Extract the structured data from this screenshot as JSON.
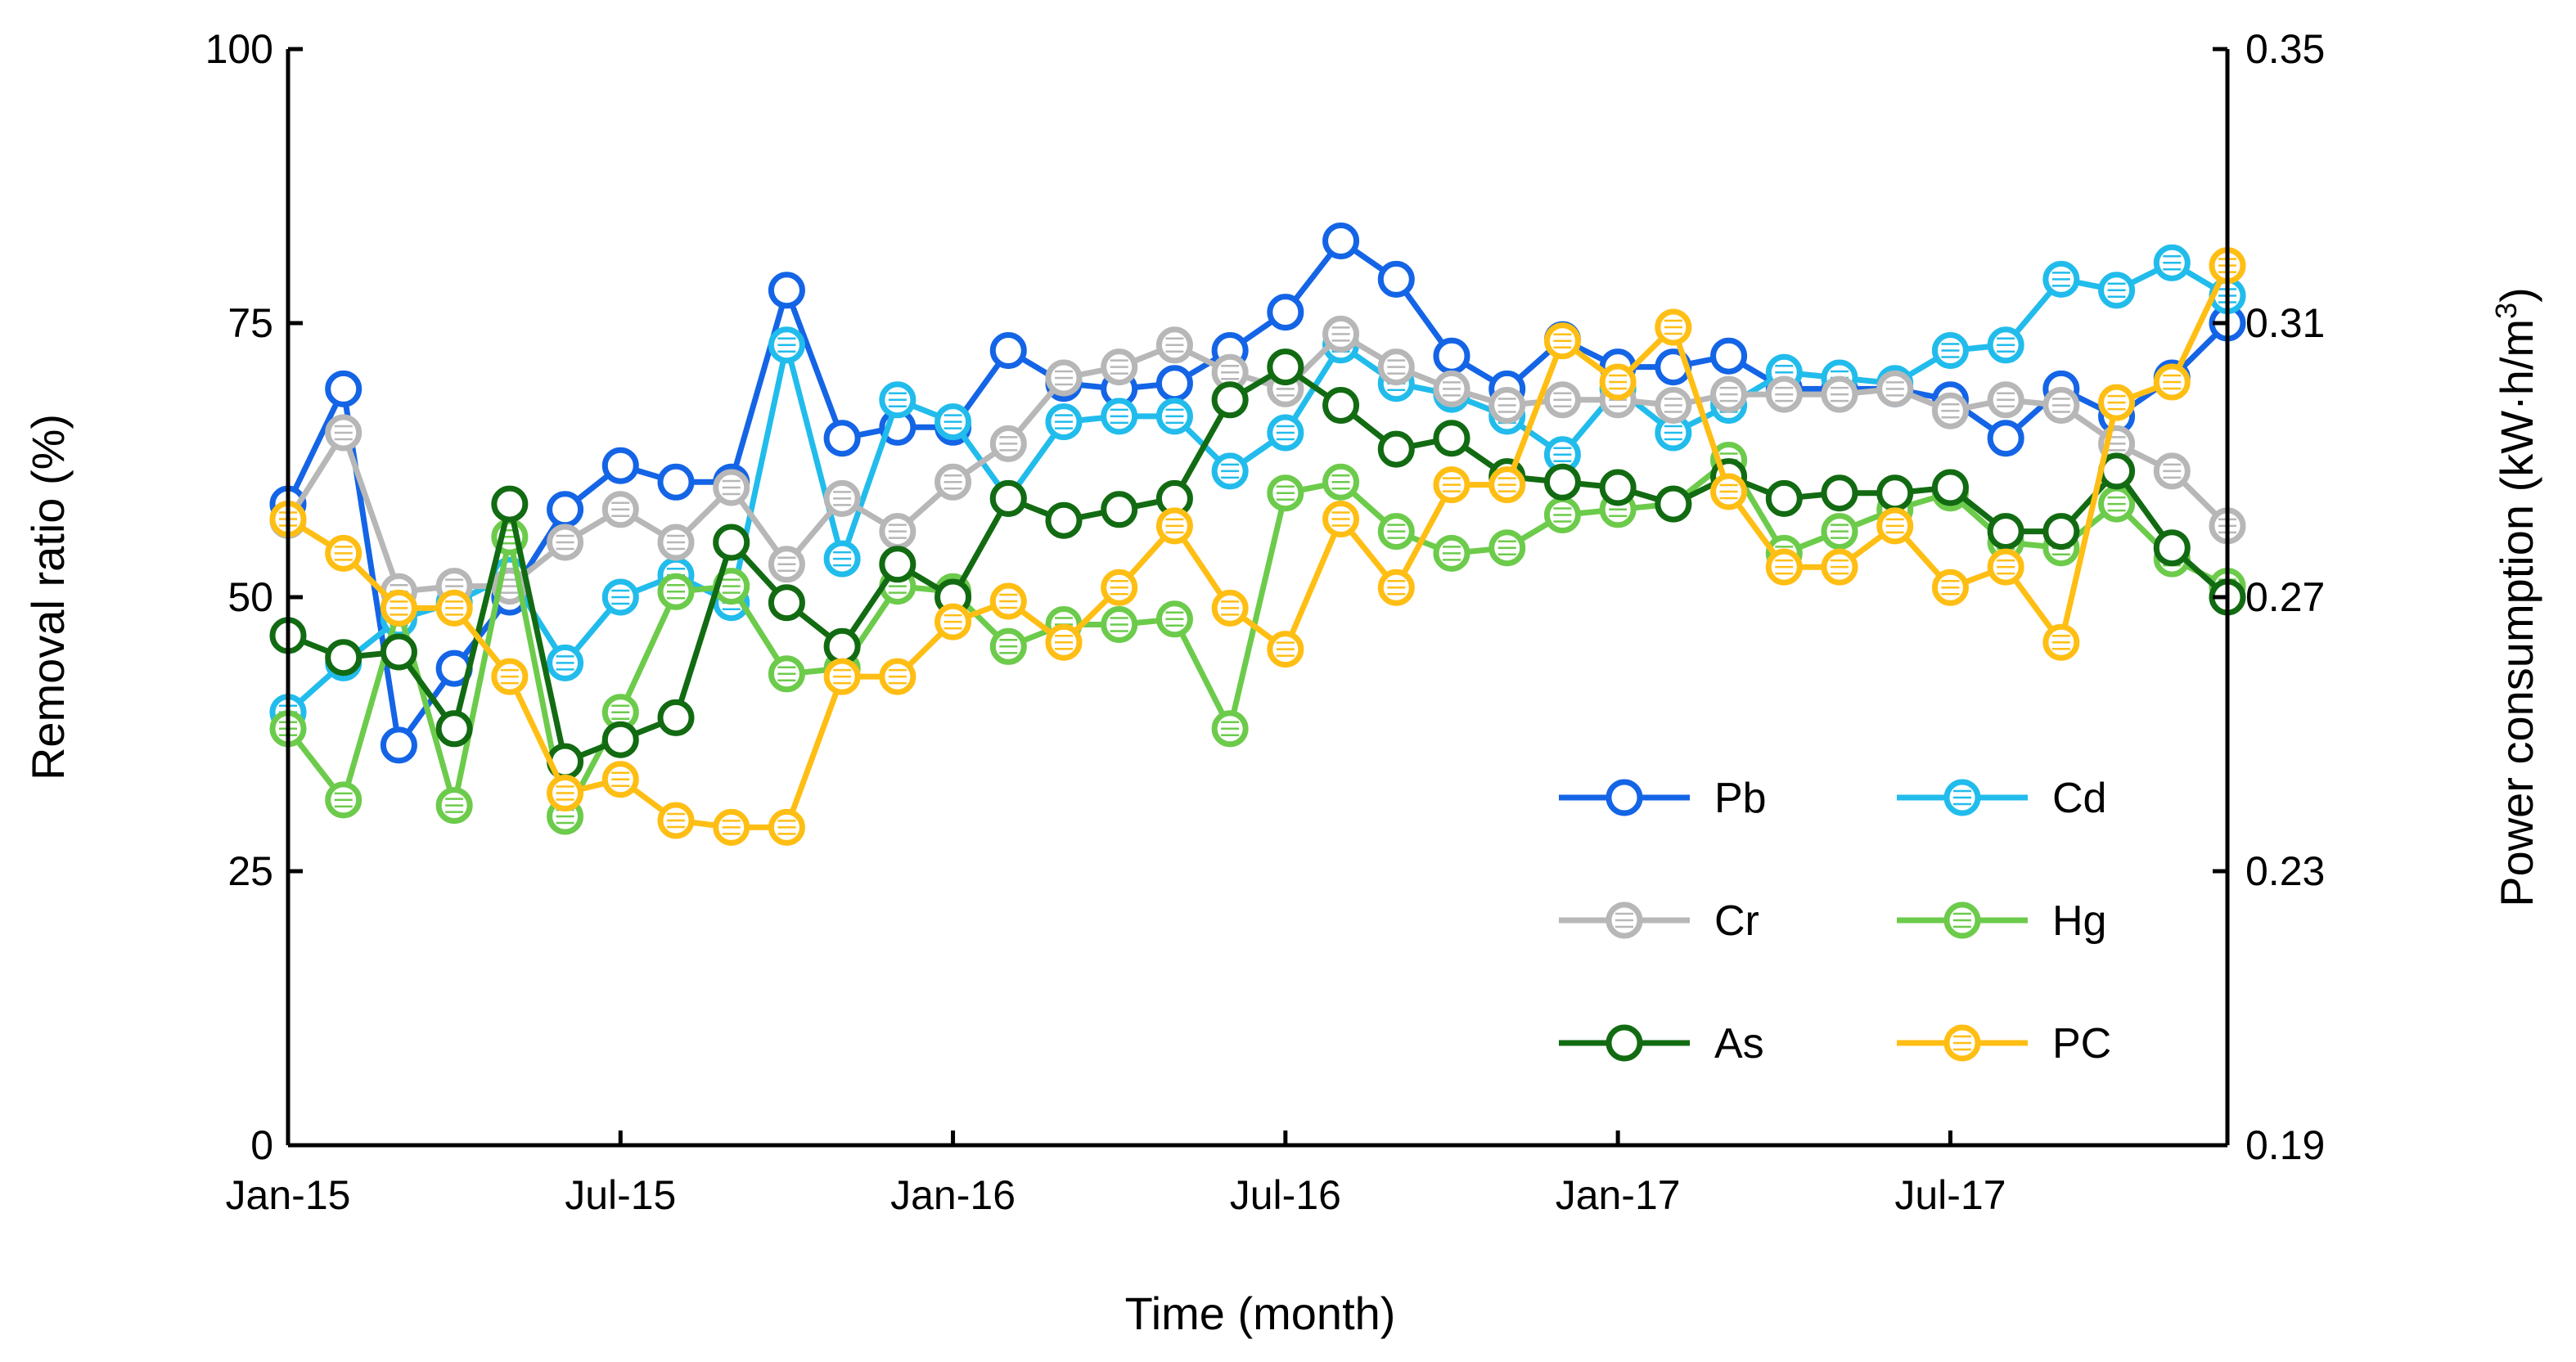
{
  "chart_data": {
    "type": "line",
    "xlabel": "Time (month)",
    "ylabel_left": "Removal ratio (%)",
    "ylabel_right_parts": [
      "Power consumption (kW·h/m",
      "3",
      ")"
    ],
    "xticks": [
      "Jan-15",
      "Jul-15",
      "Jan-16",
      "Jul-16",
      "Jan-17",
      "Jul-17"
    ],
    "xtick_index": [
      0,
      6,
      12,
      18,
      24,
      30
    ],
    "xlim": [
      0,
      35
    ],
    "ylim_left": [
      0,
      100
    ],
    "yticks_left": [
      "0",
      "25",
      "50",
      "75",
      "100"
    ],
    "ylim_right": [
      0.19,
      0.35
    ],
    "yticks_right": [
      "0.19",
      "0.23",
      "0.27",
      "0.31",
      "0.35"
    ],
    "series": [
      {
        "name": "Pb",
        "axis": "left",
        "color": "#1464E6",
        "style": "open",
        "values": [
          58.5,
          69,
          36.5,
          43.5,
          50,
          58,
          62,
          60.5,
          60.5,
          78,
          64.5,
          65.5,
          65.5,
          72.5,
          69.5,
          69,
          69.5,
          72.5,
          76,
          82.5,
          79,
          72,
          69,
          73.5,
          71,
          71,
          72,
          69,
          69,
          69,
          68,
          64.5,
          69,
          66.5,
          70,
          75
        ]
      },
      {
        "name": "Cd",
        "axis": "left",
        "color": "#21BCEC",
        "style": "lined",
        "values": [
          39.5,
          44,
          48,
          49.5,
          52,
          44,
          50,
          52,
          49.5,
          73,
          53.5,
          68,
          66,
          59,
          66,
          66.5,
          66.5,
          61.5,
          65,
          73,
          69.5,
          68.5,
          66.5,
          63,
          69,
          65,
          67.5,
          70.5,
          70,
          69.5,
          72.5,
          73,
          79,
          78,
          80.5,
          77.5
        ]
      },
      {
        "name": "Cr",
        "axis": "left",
        "color": "#B7B7B7",
        "style": "lined",
        "values": [
          57,
          65,
          50.5,
          51,
          51,
          55,
          58,
          55,
          60,
          53,
          59,
          56,
          60.5,
          64,
          70,
          71,
          73,
          70.5,
          69,
          74,
          71,
          69,
          67.5,
          68,
          68,
          67.5,
          68.5,
          68.5,
          68.5,
          69,
          67,
          68,
          67.5,
          64,
          61.5,
          56.5
        ]
      },
      {
        "name": "Hg",
        "axis": "left",
        "color": "#6CCB4B",
        "style": "lined",
        "values": [
          38,
          31.5,
          49,
          31,
          55.5,
          30,
          39.5,
          50.5,
          51,
          43,
          43.5,
          51,
          50.5,
          45.5,
          47.5,
          47.5,
          48,
          38,
          59.5,
          60.5,
          56,
          54,
          54.5,
          57.5,
          58,
          58.5,
          62.5,
          54,
          56,
          58,
          59.5,
          55,
          54.5,
          58.5,
          53.5,
          51
        ]
      },
      {
        "name": "As",
        "axis": "left",
        "color": "#126B12",
        "style": "open",
        "values": [
          46.5,
          44.5,
          45,
          38,
          58.5,
          35,
          37,
          39,
          55,
          49.5,
          45.5,
          53,
          50,
          59,
          57,
          58,
          59,
          68,
          71,
          67.5,
          63.5,
          64.5,
          61,
          60.5,
          60,
          58.5,
          61,
          59,
          59.5,
          59.5,
          60,
          56,
          56,
          61.5,
          54.5,
          50
        ]
      },
      {
        "name": "PC",
        "axis": "right",
        "color": "#FFBE14",
        "style": "lined",
        "values": [
          0.2814,
          0.2764,
          0.2684,
          0.2684,
          0.2584,
          0.2414,
          0.2434,
          0.2374,
          0.2364,
          0.2364,
          0.2584,
          0.2584,
          0.2664,
          0.2694,
          0.2634,
          0.2714,
          0.2804,
          0.2684,
          0.2624,
          0.2814,
          0.2714,
          0.2864,
          0.2864,
          0.3074,
          0.3014,
          0.3094,
          0.2854,
          0.2744,
          0.2744,
          0.2804,
          0.2714,
          0.2744,
          0.2634,
          0.2984,
          0.3014,
          0.3184
        ]
      }
    ],
    "legend": {
      "placement": "lower-right",
      "rows": [
        [
          "Pb",
          "Cd"
        ],
        [
          "Cr",
          "Hg"
        ],
        [
          "As",
          "PC"
        ]
      ]
    },
    "grid": false
  }
}
